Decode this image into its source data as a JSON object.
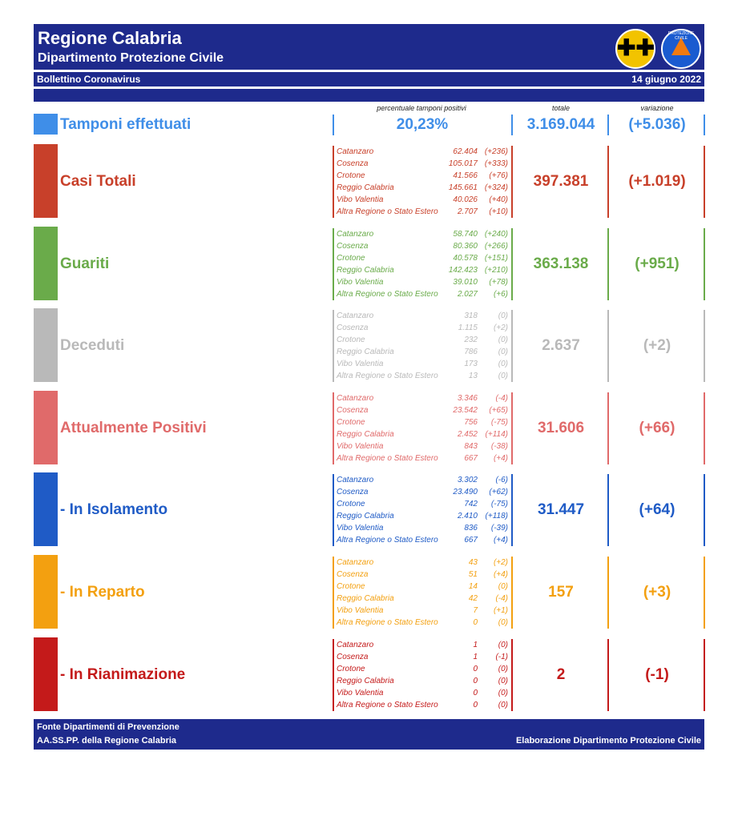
{
  "header": {
    "title": "Regione Calabria",
    "subtitle": "Dipartimento Protezione Civile",
    "bulletin": "Bollettino Coronavirus",
    "date": "14 giugno 2022",
    "logo1_symbol": "✚✚",
    "logo2_text": "PROTEZIONE CIVILE"
  },
  "columns": {
    "pct_label": "percentuale tamponi positivi",
    "total_label": "totale",
    "var_label": "variazione"
  },
  "tamponi": {
    "label": "Tamponi effettuati",
    "pct": "20,23%",
    "total": "3.169.044",
    "variation": "(+5.036)",
    "color": "#3f8ee8"
  },
  "categories": [
    {
      "label": "Casi Totali",
      "color": "#c8402a",
      "total": "397.381",
      "variation": "(+1.019)",
      "rows": [
        {
          "name": "Catanzaro",
          "value": "62.404",
          "delta": "(+236)"
        },
        {
          "name": "Cosenza",
          "value": "105.017",
          "delta": "(+333)"
        },
        {
          "name": "Crotone",
          "value": "41.566",
          "delta": "(+76)"
        },
        {
          "name": "Reggio Calabria",
          "value": "145.661",
          "delta": "(+324)"
        },
        {
          "name": "Vibo Valentia",
          "value": "40.026",
          "delta": "(+40)"
        },
        {
          "name": "Altra Regione o Stato Estero",
          "value": "2.707",
          "delta": "(+10)"
        }
      ]
    },
    {
      "label": "Guariti",
      "color": "#6aab4a",
      "total": "363.138",
      "variation": "(+951)",
      "rows": [
        {
          "name": "Catanzaro",
          "value": "58.740",
          "delta": "(+240)"
        },
        {
          "name": "Cosenza",
          "value": "80.360",
          "delta": "(+266)"
        },
        {
          "name": "Crotone",
          "value": "40.578",
          "delta": "(+151)"
        },
        {
          "name": "Reggio Calabria",
          "value": "142.423",
          "delta": "(+210)"
        },
        {
          "name": "Vibo Valentia",
          "value": "39.010",
          "delta": "(+78)"
        },
        {
          "name": "Altra Regione o Stato Estero",
          "value": "2.027",
          "delta": "(+6)"
        }
      ]
    },
    {
      "label": "Deceduti",
      "color": "#b9b9b9",
      "total": "2.637",
      "variation": "(+2)",
      "rows": [
        {
          "name": "Catanzaro",
          "value": "318",
          "delta": "(0)"
        },
        {
          "name": "Cosenza",
          "value": "1.115",
          "delta": "(+2)"
        },
        {
          "name": "Crotone",
          "value": "232",
          "delta": "(0)"
        },
        {
          "name": "Reggio Calabria",
          "value": "786",
          "delta": "(0)"
        },
        {
          "name": "Vibo Valentia",
          "value": "173",
          "delta": "(0)"
        },
        {
          "name": "Altra Regione o Stato Estero",
          "value": "13",
          "delta": "(0)"
        }
      ]
    },
    {
      "label": "Attualmente Positivi",
      "color": "#e06a6a",
      "total": "31.606",
      "variation": "(+66)",
      "rows": [
        {
          "name": "Catanzaro",
          "value": "3.346",
          "delta": "(-4)"
        },
        {
          "name": "Cosenza",
          "value": "23.542",
          "delta": "(+65)"
        },
        {
          "name": "Crotone",
          "value": "756",
          "delta": "(-75)"
        },
        {
          "name": "Reggio Calabria",
          "value": "2.452",
          "delta": "(+114)"
        },
        {
          "name": "Vibo Valentia",
          "value": "843",
          "delta": "(-38)"
        },
        {
          "name": "Altra Regione o Stato Estero",
          "value": "667",
          "delta": "(+4)"
        }
      ]
    },
    {
      "label": "- In Isolamento",
      "color": "#1f5bc6",
      "total": "31.447",
      "variation": "(+64)",
      "rows": [
        {
          "name": "Catanzaro",
          "value": "3.302",
          "delta": "(-6)"
        },
        {
          "name": "Cosenza",
          "value": "23.490",
          "delta": "(+62)"
        },
        {
          "name": "Crotone",
          "value": "742",
          "delta": "(-75)"
        },
        {
          "name": "Reggio Calabria",
          "value": "2.410",
          "delta": "(+118)"
        },
        {
          "name": "Vibo Valentia",
          "value": "836",
          "delta": "(-39)"
        },
        {
          "name": "Altra Regione o Stato Estero",
          "value": "667",
          "delta": "(+4)"
        }
      ]
    },
    {
      "label": "- In Reparto",
      "color": "#f3a010",
      "total": "157",
      "variation": "(+3)",
      "rows": [
        {
          "name": "Catanzaro",
          "value": "43",
          "delta": "(+2)"
        },
        {
          "name": "Cosenza",
          "value": "51",
          "delta": "(+4)"
        },
        {
          "name": "Crotone",
          "value": "14",
          "delta": "(0)"
        },
        {
          "name": "Reggio Calabria",
          "value": "42",
          "delta": "(-4)"
        },
        {
          "name": "Vibo Valentia",
          "value": "7",
          "delta": "(+1)"
        },
        {
          "name": "Altra Regione o Stato Estero",
          "value": "0",
          "delta": "(0)"
        }
      ]
    },
    {
      "label": "- In Rianimazione",
      "color": "#c41a1a",
      "total": "2",
      "variation": "(-1)",
      "rows": [
        {
          "name": "Catanzaro",
          "value": "1",
          "delta": "(0)"
        },
        {
          "name": "Cosenza",
          "value": "1",
          "delta": "(-1)"
        },
        {
          "name": "Crotone",
          "value": "0",
          "delta": "(0)"
        },
        {
          "name": "Reggio Calabria",
          "value": "0",
          "delta": "(0)"
        },
        {
          "name": "Vibo Valentia",
          "value": "0",
          "delta": "(0)"
        },
        {
          "name": "Altra Regione o Stato Estero",
          "value": "0",
          "delta": "(0)"
        }
      ]
    }
  ],
  "footer": {
    "source_line1": "Fonte Dipartimenti di Prevenzione",
    "source_line2": "AA.SS.PP.  della Regione Calabria",
    "credit": "Elaborazione Dipartimento Protezione Civile"
  }
}
